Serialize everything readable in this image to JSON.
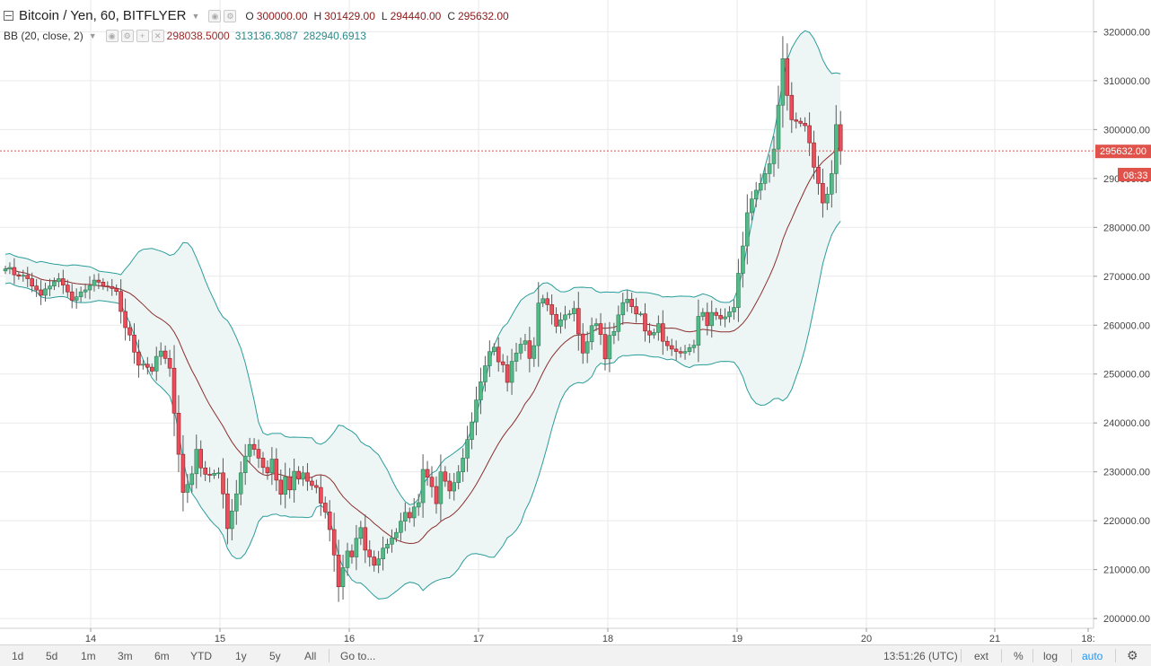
{
  "header": {
    "title": "Bitcoin / Yen, 60, BITFLYER",
    "ohlc": [
      {
        "label": "O",
        "value": "300000.00"
      },
      {
        "label": "H",
        "value": "301429.00"
      },
      {
        "label": "L",
        "value": "294440.00"
      },
      {
        "label": "C",
        "value": "295632.00"
      }
    ]
  },
  "indicator": {
    "label": "BB (20, close, 2)",
    "values": [
      "298038.5000",
      "313136.3087",
      "282940.6913"
    ]
  },
  "price_axis": {
    "last_price_label": "295632.00",
    "countdown": "08:33"
  },
  "bottom_bar": {
    "ranges": [
      "1d",
      "5d",
      "1m",
      "3m",
      "6m",
      "YTD",
      "1y",
      "5y",
      "All"
    ],
    "goto": "Go to...",
    "time": "13:51:26 (UTC)",
    "toggles": [
      "ext",
      "%",
      "log",
      "auto"
    ]
  },
  "colors": {
    "up": "#53b987",
    "down": "#eb4d5c",
    "band": "#2a9d9a",
    "basis": "#8b2e2e",
    "fill": "#eef6f5",
    "last_price_line": "#d9534f"
  },
  "chart_data": {
    "type": "candlestick",
    "symbol": "Bitcoin / Yen",
    "interval": "60",
    "exchange": "BITFLYER",
    "y_axis": {
      "ticks": [
        200000,
        210000,
        220000,
        230000,
        240000,
        250000,
        260000,
        270000,
        280000,
        290000,
        300000,
        310000,
        320000
      ],
      "labels": [
        "200000.00",
        "210000.00",
        "220000.00",
        "230000.00",
        "240000.00",
        "250000.00",
        "260000.00",
        "270000.00",
        "280000.00",
        "290000.00",
        "300000.00",
        "310000.00",
        "320000.00"
      ],
      "min": 198000,
      "max": 326500
    },
    "x_axis": {
      "ticks": [
        "14",
        "15",
        "16",
        "17",
        "18",
        "19",
        "20",
        "21",
        "18:"
      ]
    },
    "last_price": 295632,
    "indicators": {
      "bollinger_bands": {
        "length": 20,
        "source": "close",
        "mult": 2,
        "basis": 298038.5,
        "upper": 313136.3087,
        "lower": 282940.6913
      }
    },
    "close_series": [
      271500,
      271800,
      270300,
      270000,
      270200,
      269500,
      268000,
      267200,
      266100,
      267400,
      268000,
      268900,
      269500,
      268200,
      266800,
      265100,
      265800,
      266800,
      267200,
      268100,
      269200,
      268800,
      268000,
      267900,
      267500,
      266900,
      262800,
      259500,
      258000,
      254500,
      251800,
      252000,
      251400,
      250600,
      253600,
      254700,
      253200,
      251200,
      242000,
      233600,
      225800,
      227400,
      229600,
      234600,
      230800,
      229500,
      229300,
      229700,
      229800,
      225500,
      218400,
      222000,
      225500,
      229800,
      233200,
      235600,
      234600,
      232800,
      230900,
      229800,
      232600,
      228300,
      225400,
      229000,
      226300,
      230100,
      228500,
      229800,
      228100,
      227200,
      226800,
      223600,
      221800,
      218200,
      213000,
      206500,
      210400,
      213800,
      212600,
      216400,
      218600,
      214000,
      212600,
      210900,
      212200,
      214400,
      215200,
      216500,
      217600,
      219900,
      221700,
      220600,
      222800,
      223700,
      230500,
      228900,
      227000,
      223500,
      230000,
      228100,
      226100,
      227800,
      230000,
      232800,
      236600,
      240200,
      244700,
      248400,
      251700,
      254600,
      255500,
      252500,
      251900,
      248300,
      252600,
      254300,
      256100,
      256800,
      253200,
      255800,
      264500,
      265400,
      264200,
      262200,
      259800,
      261100,
      262100,
      262300,
      263400,
      258200,
      254300,
      256600,
      259900,
      260300,
      258100,
      253100,
      257900,
      258700,
      262100,
      264600,
      265300,
      263800,
      262300,
      262300,
      258800,
      258000,
      258500,
      260300,
      256700,
      255800,
      255100,
      254600,
      254300,
      254600,
      255400,
      255900,
      261800,
      262600,
      259900,
      262600,
      262000,
      261300,
      261700,
      262700,
      263600,
      270600,
      276200,
      283000,
      285800,
      287600,
      289000,
      291000,
      293000,
      296000,
      305000,
      314500,
      307000,
      302000,
      301700,
      301300,
      300800,
      297300,
      292300,
      289000,
      285000,
      286800,
      291000,
      301000,
      295632
    ]
  }
}
